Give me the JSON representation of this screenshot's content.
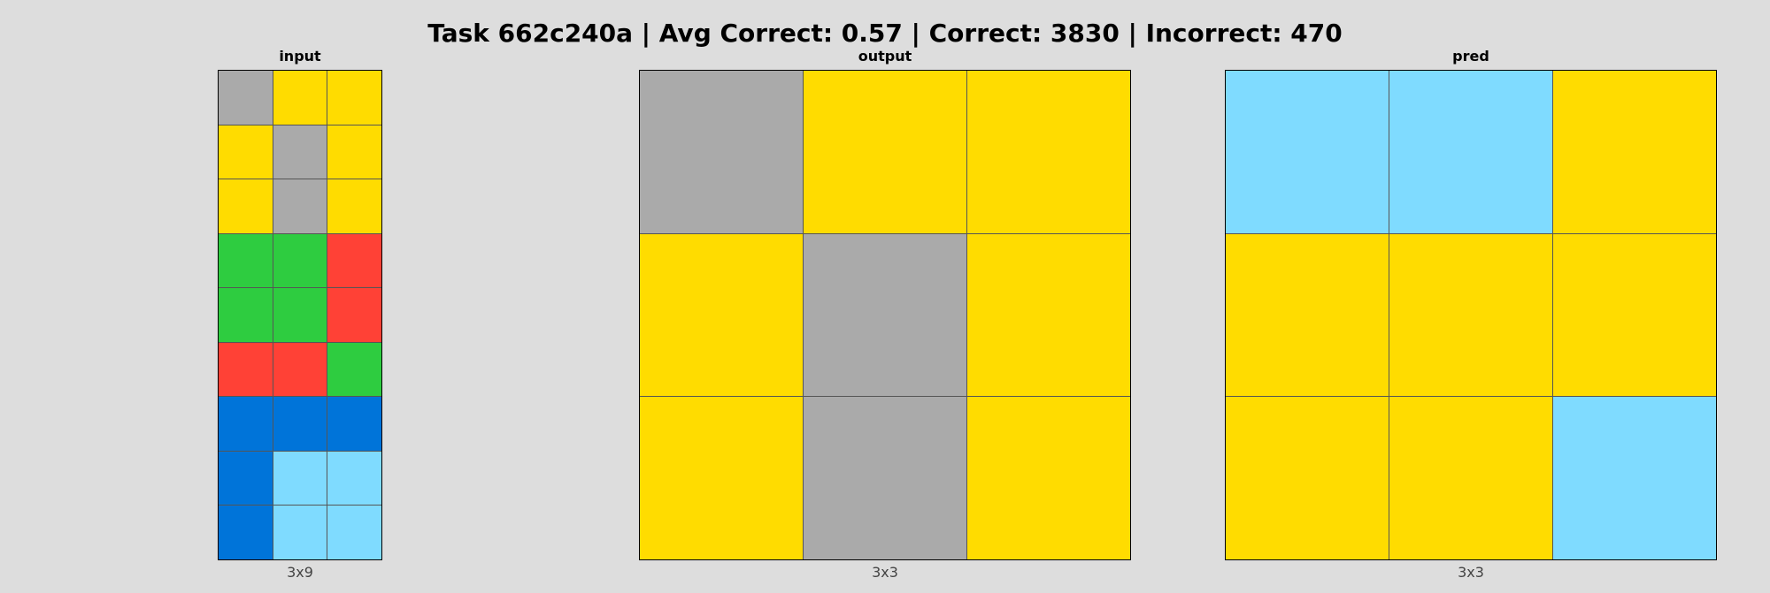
{
  "title": "Task 662c240a | Avg Correct: 0.57 | Correct: 3830 | Incorrect: 470",
  "palette": {
    "0": "#000000",
    "1": "#0074d9",
    "2": "#ff4136",
    "3": "#2ecc40",
    "4": "#ffdc00",
    "5": "#aaaaaa",
    "6": "#f012be",
    "7": "#ff851b",
    "8": "#7fdbff",
    "9": "#870c25"
  },
  "panels": [
    {
      "label": "input",
      "dims": "3x9",
      "grid": [
        [
          5,
          4,
          4
        ],
        [
          4,
          5,
          4
        ],
        [
          4,
          5,
          4
        ],
        [
          3,
          3,
          2
        ],
        [
          3,
          3,
          2
        ],
        [
          2,
          2,
          3
        ],
        [
          1,
          1,
          1
        ],
        [
          1,
          8,
          8
        ],
        [
          1,
          8,
          8
        ]
      ]
    },
    {
      "label": "output",
      "dims": "3x3",
      "grid": [
        [
          5,
          4,
          4
        ],
        [
          4,
          5,
          4
        ],
        [
          4,
          5,
          4
        ]
      ]
    },
    {
      "label": "pred",
      "dims": "3x3",
      "grid": [
        [
          8,
          8,
          4
        ],
        [
          4,
          4,
          4
        ],
        [
          4,
          4,
          8
        ]
      ]
    }
  ]
}
